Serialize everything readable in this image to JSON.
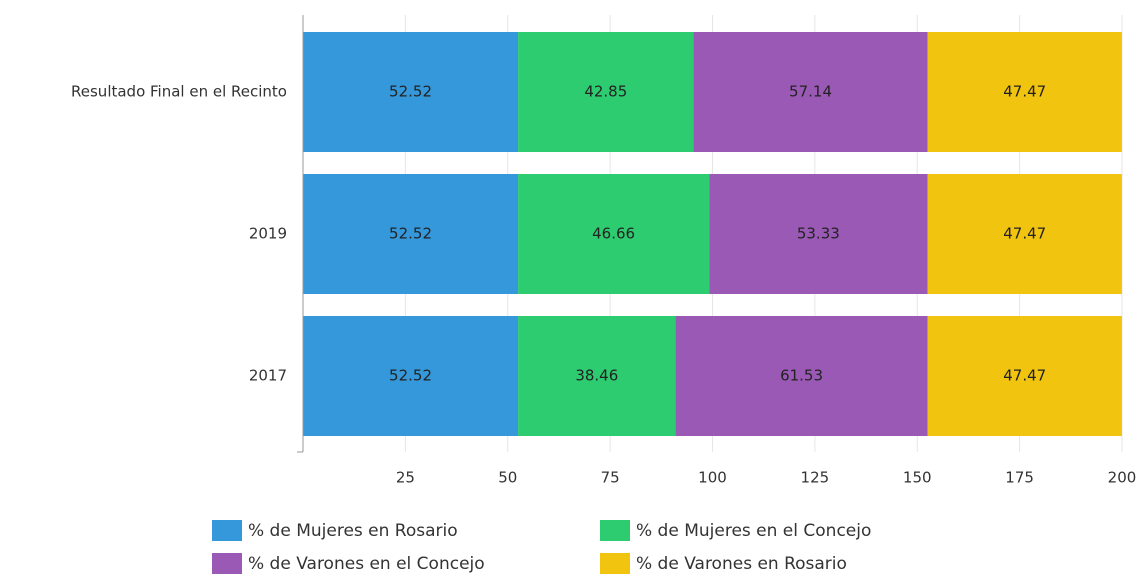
{
  "chart_data": {
    "type": "stacked-bar-horizontal",
    "categories": [
      "Resultado Final en el Recinto",
      "2019",
      "2017"
    ],
    "series": [
      {
        "name": "% de Mujeres en Rosario",
        "color": "#3498db",
        "values": [
          52.52,
          52.52,
          52.52
        ]
      },
      {
        "name": "% de Mujeres en el Concejo",
        "color": "#2ecc71",
        "values": [
          42.85,
          46.66,
          38.46
        ]
      },
      {
        "name": "% de Varones en el Concejo",
        "color": "#9b59b6",
        "values": [
          57.14,
          53.33,
          61.53
        ]
      },
      {
        "name": "% de Varones en Rosario",
        "color": "#f1c40f",
        "values": [
          47.47,
          47.47,
          47.47
        ]
      }
    ],
    "xlim": [
      0,
      200
    ],
    "xticks": [
      25,
      50,
      75,
      100,
      125,
      150,
      175,
      200
    ],
    "grid": true,
    "legend": "bottom"
  }
}
